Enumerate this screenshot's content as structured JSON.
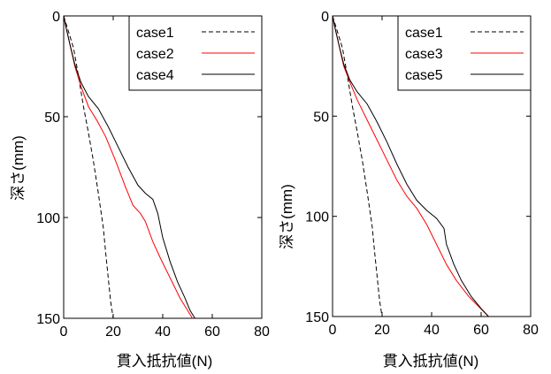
{
  "chart_data": [
    {
      "type": "line",
      "title": "",
      "xlabel": "貫入抵抗値(N)",
      "ylabel": "深さ(mm)",
      "xlim": [
        0,
        80
      ],
      "ylim": [
        0,
        150
      ],
      "y_inverted": true,
      "xticks": [
        "0",
        "20",
        "40",
        "60",
        "80"
      ],
      "yticks": [
        "0",
        "50",
        "100",
        "150"
      ],
      "grid": false,
      "legend_position": "top-right",
      "series": [
        {
          "name": "case1",
          "color": "#000000",
          "dash": "dashed",
          "points": [
            [
              0,
              0
            ],
            [
              2,
              8
            ],
            [
              4,
              16
            ],
            [
              6,
              30
            ],
            [
              8,
              45
            ],
            [
              10,
              58
            ],
            [
              12,
              72
            ],
            [
              14,
              88
            ],
            [
              16,
              105
            ],
            [
              17,
              118
            ],
            [
              18,
              130
            ],
            [
              19,
              142
            ],
            [
              20,
              150
            ]
          ]
        },
        {
          "name": "case2",
          "color": "#ff0000",
          "dash": "solid",
          "points": [
            [
              0,
              0
            ],
            [
              1,
              6
            ],
            [
              2.5,
              14
            ],
            [
              4.5,
              25
            ],
            [
              7,
              35
            ],
            [
              10,
              45
            ],
            [
              13.5,
              52
            ],
            [
              17,
              60
            ],
            [
              21,
              72
            ],
            [
              25,
              85
            ],
            [
              28,
              94
            ],
            [
              31,
              98
            ],
            [
              33,
              102
            ],
            [
              36,
              112
            ],
            [
              39,
              120
            ],
            [
              43,
              130
            ],
            [
              47,
              140
            ],
            [
              50,
              146
            ],
            [
              52,
              150
            ]
          ]
        },
        {
          "name": "case4",
          "color": "#000000",
          "dash": "solid",
          "points": [
            [
              0,
              0
            ],
            [
              1,
              6
            ],
            [
              2.5,
              14
            ],
            [
              4.5,
              24
            ],
            [
              7,
              33
            ],
            [
              10,
              40
            ],
            [
              14,
              46
            ],
            [
              18,
              55
            ],
            [
              22,
              65
            ],
            [
              26,
              75
            ],
            [
              30,
              84
            ],
            [
              33,
              88
            ],
            [
              36,
              91
            ],
            [
              38,
              98
            ],
            [
              40,
              110
            ],
            [
              43,
              122
            ],
            [
              46,
              132
            ],
            [
              49,
              140
            ],
            [
              51,
              146
            ],
            [
              53,
              150
            ]
          ]
        }
      ]
    },
    {
      "type": "line",
      "title": "",
      "xlabel": "貫入抵抗値(N)",
      "ylabel": "深さ(mm)",
      "xlim": [
        0,
        80
      ],
      "ylim": [
        0,
        150
      ],
      "y_inverted": true,
      "xticks": [
        "0",
        "20",
        "40",
        "60",
        "80"
      ],
      "yticks": [
        "0",
        "50",
        "100",
        "150"
      ],
      "grid": false,
      "legend_position": "top-right",
      "series": [
        {
          "name": "case1",
          "color": "#000000",
          "dash": "dashed",
          "points": [
            [
              0,
              0
            ],
            [
              2,
              8
            ],
            [
              4,
              16
            ],
            [
              6,
              30
            ],
            [
              8,
              45
            ],
            [
              10,
              58
            ],
            [
              12,
              72
            ],
            [
              14,
              88
            ],
            [
              16,
              105
            ],
            [
              17,
              118
            ],
            [
              18,
              130
            ],
            [
              19,
              142
            ],
            [
              20,
              150
            ]
          ]
        },
        {
          "name": "case3",
          "color": "#ff0000",
          "dash": "solid",
          "points": [
            [
              0,
              0
            ],
            [
              1,
              6
            ],
            [
              2.5,
              14
            ],
            [
              4.5,
              25
            ],
            [
              7,
              33
            ],
            [
              10,
              42
            ],
            [
              14,
              52
            ],
            [
              18,
              62
            ],
            [
              22,
              72
            ],
            [
              26,
              82
            ],
            [
              30,
              90
            ],
            [
              34,
              96
            ],
            [
              38,
              104
            ],
            [
              42,
              114
            ],
            [
              46,
              124
            ],
            [
              50,
              132
            ],
            [
              55,
              140
            ],
            [
              59,
              145
            ],
            [
              63,
              150
            ]
          ]
        },
        {
          "name": "case5",
          "color": "#000000",
          "dash": "solid",
          "points": [
            [
              0,
              0
            ],
            [
              1,
              6
            ],
            [
              2.5,
              14
            ],
            [
              4.5,
              24
            ],
            [
              7,
              32
            ],
            [
              10,
              38
            ],
            [
              14,
              44
            ],
            [
              18,
              53
            ],
            [
              22,
              63
            ],
            [
              26,
              74
            ],
            [
              30,
              84
            ],
            [
              34,
              92
            ],
            [
              38,
              97
            ],
            [
              42,
              101
            ],
            [
              45,
              106
            ],
            [
              46,
              114
            ],
            [
              49,
              124
            ],
            [
              52,
              132
            ],
            [
              56,
              140
            ],
            [
              60,
              146
            ],
            [
              63,
              150
            ]
          ]
        }
      ]
    }
  ]
}
